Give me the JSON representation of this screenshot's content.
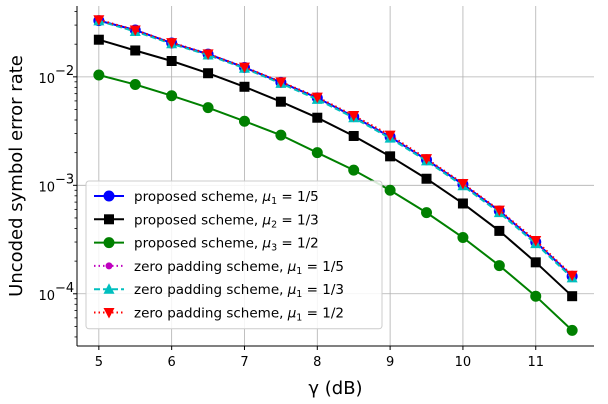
{
  "chart_data": {
    "type": "line",
    "title": "",
    "xlabel": "γ (dB)",
    "ylabel": "Uncoded symbol error rate",
    "xlim": [
      4.7,
      11.8
    ],
    "ylim": [
      3.3e-05,
      0.045
    ],
    "yscale": "log",
    "grid": true,
    "legend_placement": "lower-left",
    "x_ticks": [
      {
        "value": 5,
        "label": "5"
      },
      {
        "value": 6,
        "label": "6"
      },
      {
        "value": 7,
        "label": "7"
      },
      {
        "value": 8,
        "label": "8"
      },
      {
        "value": 9,
        "label": "9"
      },
      {
        "value": 10,
        "label": "10"
      },
      {
        "value": 11,
        "label": "11"
      }
    ],
    "y_ticks": [
      {
        "value": 0.0001,
        "base": "10",
        "exp": "−4"
      },
      {
        "value": 0.001,
        "base": "10",
        "exp": "−3"
      },
      {
        "value": 0.01,
        "base": "10",
        "exp": "−2"
      }
    ],
    "x": [
      5,
      5.5,
      6,
      6.5,
      7,
      7.5,
      8,
      8.5,
      9,
      9.5,
      10,
      10.5,
      11,
      11.5
    ],
    "series": [
      {
        "name_prefix": "proposed scheme, ",
        "name_var": "μ",
        "name_sub": "1",
        "name_suffix": " = 1/5",
        "color": "#0000ff",
        "linestyle": "solid",
        "marker": "circle",
        "values": [
          0.033,
          0.027,
          0.0205,
          0.0162,
          0.0122,
          0.0089,
          0.0064,
          0.0043,
          0.0028,
          0.00172,
          0.00102,
          0.00058,
          0.0003,
          0.000145
        ]
      },
      {
        "name_prefix": "proposed scheme, ",
        "name_var": "μ",
        "name_sub": "2",
        "name_suffix": " = 1/3",
        "color": "#000000",
        "linestyle": "solid",
        "marker": "square",
        "values": [
          0.022,
          0.0175,
          0.014,
          0.0108,
          0.0081,
          0.0059,
          0.0042,
          0.00285,
          0.00185,
          0.00115,
          0.00068,
          0.00038,
          0.000195,
          9.5e-05
        ]
      },
      {
        "name_prefix": "proposed scheme, ",
        "name_var": "μ",
        "name_sub": "3",
        "name_suffix": " = 1/2",
        "color": "#008000",
        "linestyle": "solid",
        "marker": "circle",
        "values": [
          0.0104,
          0.0085,
          0.0067,
          0.0052,
          0.0039,
          0.0029,
          0.002,
          0.00138,
          0.0009,
          0.00056,
          0.00033,
          0.000182,
          9.5e-05,
          4.6e-05
        ]
      },
      {
        "name_prefix": "zero padding  scheme, ",
        "name_var": "μ",
        "name_sub": "1",
        "name_suffix": " = 1/5",
        "color": "#bf00bf",
        "linestyle": "dotted",
        "marker": "small-circle",
        "values": [
          0.0335,
          0.0268,
          0.0207,
          0.0162,
          0.0122,
          0.0089,
          0.0064,
          0.0043,
          0.0028,
          0.00172,
          0.00102,
          0.00058,
          0.0003,
          0.000145
        ]
      },
      {
        "name_prefix": "zero padding  scheme, ",
        "name_var": "μ",
        "name_sub": "1",
        "name_suffix": " = 1/3",
        "color": "#00bfbf",
        "linestyle": "dashed",
        "marker": "triangle-up",
        "values": [
          0.0328,
          0.0262,
          0.0202,
          0.0159,
          0.012,
          0.0087,
          0.0062,
          0.0042,
          0.00272,
          0.00168,
          0.00099,
          0.00056,
          0.00029,
          0.00014
        ]
      },
      {
        "name_prefix": "zero padding  scheme, ",
        "name_var": "μ",
        "name_sub": "1",
        "name_suffix": " = 1/2",
        "color": "#ff0000",
        "linestyle": "dotted",
        "marker": "triangle-down",
        "values": [
          0.0336,
          0.027,
          0.0207,
          0.0163,
          0.0123,
          0.009,
          0.0065,
          0.0044,
          0.0029,
          0.00176,
          0.00104,
          0.00059,
          0.00031,
          0.000148
        ]
      }
    ]
  }
}
